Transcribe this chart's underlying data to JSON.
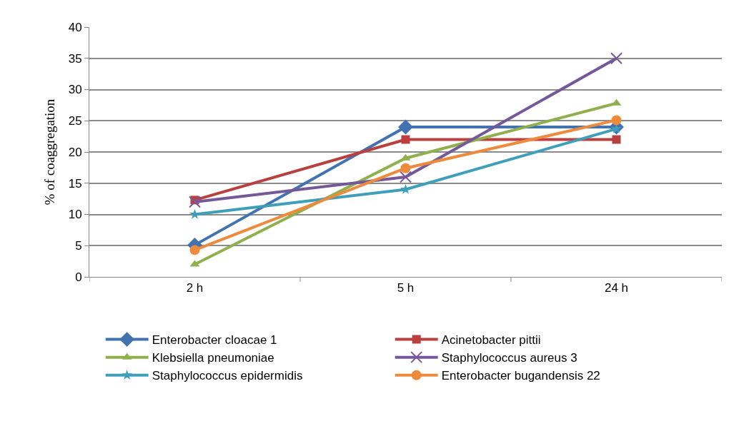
{
  "chart_data": {
    "type": "line",
    "ylabel": "% of coaggregation",
    "categories": [
      "2 h",
      "5 h",
      "24 h"
    ],
    "series": [
      {
        "name": "Enterobacter cloacae 1",
        "color": "#4272b0",
        "marker": "diamond",
        "values": [
          5.1,
          24,
          24
        ]
      },
      {
        "name": "Acinetobacter pittii",
        "color": "#b9403e",
        "marker": "square",
        "values": [
          12.3,
          22,
          22
        ]
      },
      {
        "name": "Klebsiella pneumoniae",
        "color": "#8fb04c",
        "marker": "triangle",
        "values": [
          2,
          19,
          27.8
        ]
      },
      {
        "name": "Staphylococcus aureus 3",
        "color": "#74589a",
        "marker": "cross",
        "values": [
          12,
          16,
          35
        ]
      },
      {
        "name": "Staphylococcus epidermidis",
        "color": "#3f9fbb",
        "marker": "star",
        "values": [
          10,
          14,
          23.7
        ]
      },
      {
        "name": "Enterobacter bugandensis 22",
        "color": "#ee8a3c",
        "marker": "circle",
        "values": [
          4.3,
          17.4,
          25.1
        ]
      }
    ],
    "ylim": [
      0,
      40
    ],
    "yticks": [
      0,
      5,
      10,
      15,
      20,
      25,
      30,
      35,
      40
    ],
    "grid": "y",
    "legend": "bottom",
    "line_style": "solid"
  }
}
